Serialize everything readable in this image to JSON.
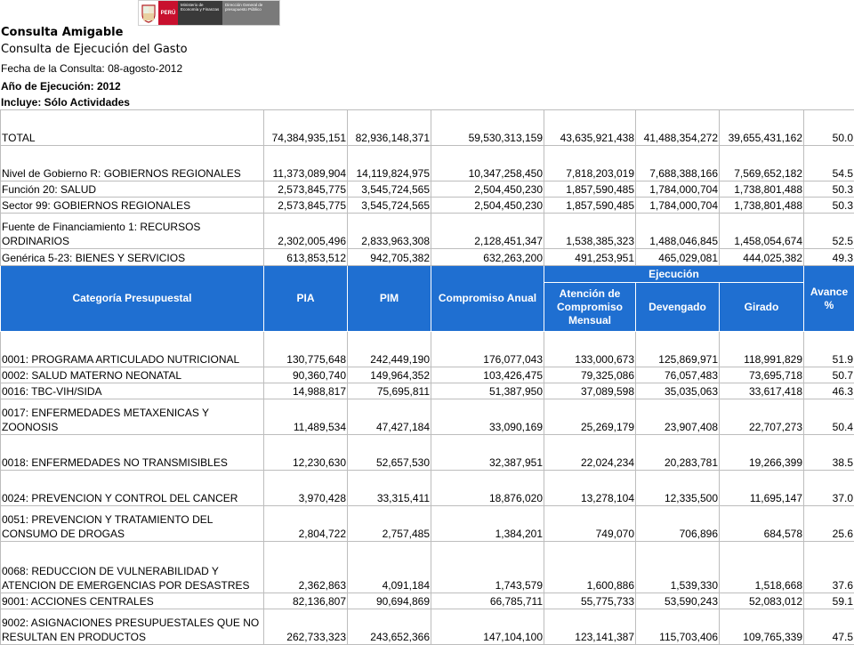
{
  "logo": {
    "country": "PERÚ",
    "ministry": "Ministerio de Economía y Finanzas",
    "office": "Dirección General de presupuesto Público"
  },
  "header": {
    "title": "Consulta Amigable",
    "subtitle": "Consulta de Ejecución del Gasto",
    "date": "Fecha de la Consulta: 08-agosto-2012",
    "year": "Año de Ejecución: 2012",
    "includes": "Incluye: Sólo Actividades"
  },
  "summary_rows": [
    {
      "label": "TOTAL",
      "pia": "74,384,935,151",
      "pim": "82,936,148,371",
      "compromiso": "59,530,313,159",
      "atencion": "43,635,921,438",
      "devengado": "41,488,354,272",
      "girado": "39,655,431,162",
      "avance": "50.0"
    },
    {
      "label": "Nivel de Gobierno R: GOBIERNOS REGIONALES",
      "pia": "11,373,089,904",
      "pim": "14,119,824,975",
      "compromiso": "10,347,258,450",
      "atencion": "7,818,203,019",
      "devengado": "7,688,388,166",
      "girado": "7,569,652,182",
      "avance": "54.5"
    },
    {
      "label": "Función 20: SALUD",
      "pia": "2,573,845,775",
      "pim": "3,545,724,565",
      "compromiso": "2,504,450,230",
      "atencion": "1,857,590,485",
      "devengado": "1,784,000,704",
      "girado": "1,738,801,488",
      "avance": "50.3"
    },
    {
      "label": "Sector 99: GOBIERNOS REGIONALES",
      "pia": "2,573,845,775",
      "pim": "3,545,724,565",
      "compromiso": "2,504,450,230",
      "atencion": "1,857,590,485",
      "devengado": "1,784,000,704",
      "girado": "1,738,801,488",
      "avance": "50.3"
    },
    {
      "label": "Fuente de Financiamiento 1: RECURSOS ORDINARIOS",
      "pia": "2,302,005,496",
      "pim": "2,833,963,308",
      "compromiso": "2,128,451,347",
      "atencion": "1,538,385,323",
      "devengado": "1,488,046,845",
      "girado": "1,458,054,674",
      "avance": "52.5"
    },
    {
      "label": "Genérica 5-23: BIENES Y SERVICIOS",
      "pia": "613,853,512",
      "pim": "942,705,382",
      "compromiso": "632,263,200",
      "atencion": "491,253,951",
      "devengado": "465,029,081",
      "girado": "444,025,382",
      "avance": "49.3"
    }
  ],
  "columns": {
    "categoria": "Categoría Presupuestal",
    "pia": "PIA",
    "pim": "PIM",
    "compromiso": "Compromiso Anual",
    "ejecucion": "Ejecución",
    "atencion": "Atención de Compromiso Mensual",
    "devengado": "Devengado",
    "girado": "Girado",
    "avance": "Avance %"
  },
  "rows": [
    {
      "label": "0001: PROGRAMA ARTICULADO NUTRICIONAL",
      "pia": "130,775,648",
      "pim": "242,449,190",
      "compromiso": "176,077,043",
      "atencion": "133,000,673",
      "devengado": "125,869,971",
      "girado": "118,991,829",
      "avance": "51.9"
    },
    {
      "label": "0002: SALUD MATERNO NEONATAL",
      "pia": "90,360,740",
      "pim": "149,964,352",
      "compromiso": "103,426,475",
      "atencion": "79,325,086",
      "devengado": "76,057,483",
      "girado": "73,695,718",
      "avance": "50.7"
    },
    {
      "label": "0016: TBC-VIH/SIDA",
      "pia": "14,988,817",
      "pim": "75,695,811",
      "compromiso": "51,387,950",
      "atencion": "37,089,598",
      "devengado": "35,035,063",
      "girado": "33,617,418",
      "avance": "46.3"
    },
    {
      "label": "0017: ENFERMEDADES METAXENICAS Y ZOONOSIS",
      "pia": "11,489,534",
      "pim": "47,427,184",
      "compromiso": "33,090,169",
      "atencion": "25,269,179",
      "devengado": "23,907,408",
      "girado": "22,707,273",
      "avance": "50.4"
    },
    {
      "label": "0018: ENFERMEDADES NO TRANSMISIBLES",
      "pia": "12,230,630",
      "pim": "52,657,530",
      "compromiso": "32,387,951",
      "atencion": "22,024,234",
      "devengado": "20,283,781",
      "girado": "19,266,399",
      "avance": "38.5"
    },
    {
      "label": "0024: PREVENCION Y CONTROL DEL CANCER",
      "pia": "3,970,428",
      "pim": "33,315,411",
      "compromiso": "18,876,020",
      "atencion": "13,278,104",
      "devengado": "12,335,500",
      "girado": "11,695,147",
      "avance": "37.0"
    },
    {
      "label": "0051: PREVENCION Y TRATAMIENTO DEL CONSUMO DE DROGAS",
      "pia": "2,804,722",
      "pim": "2,757,485",
      "compromiso": "1,384,201",
      "atencion": "749,070",
      "devengado": "706,896",
      "girado": "684,578",
      "avance": "25.6"
    },
    {
      "label": "0068: REDUCCION DE VULNERABILIDAD Y ATENCION DE EMERGENCIAS POR DESASTRES",
      "pia": "2,362,863",
      "pim": "4,091,184",
      "compromiso": "1,743,579",
      "atencion": "1,600,886",
      "devengado": "1,539,330",
      "girado": "1,518,668",
      "avance": "37.6"
    },
    {
      "label": "9001: ACCIONES CENTRALES",
      "pia": "82,136,807",
      "pim": "90,694,869",
      "compromiso": "66,785,711",
      "atencion": "55,775,733",
      "devengado": "53,590,243",
      "girado": "52,083,012",
      "avance": "59.1"
    },
    {
      "label": "9002: ASIGNACIONES PRESUPUESTALES QUE NO RESULTAN EN PRODUCTOS",
      "pia": "262,733,323",
      "pim": "243,652,366",
      "compromiso": "147,104,100",
      "atencion": "123,141,387",
      "devengado": "115,703,406",
      "girado": "109,765,339",
      "avance": "47.5"
    }
  ]
}
